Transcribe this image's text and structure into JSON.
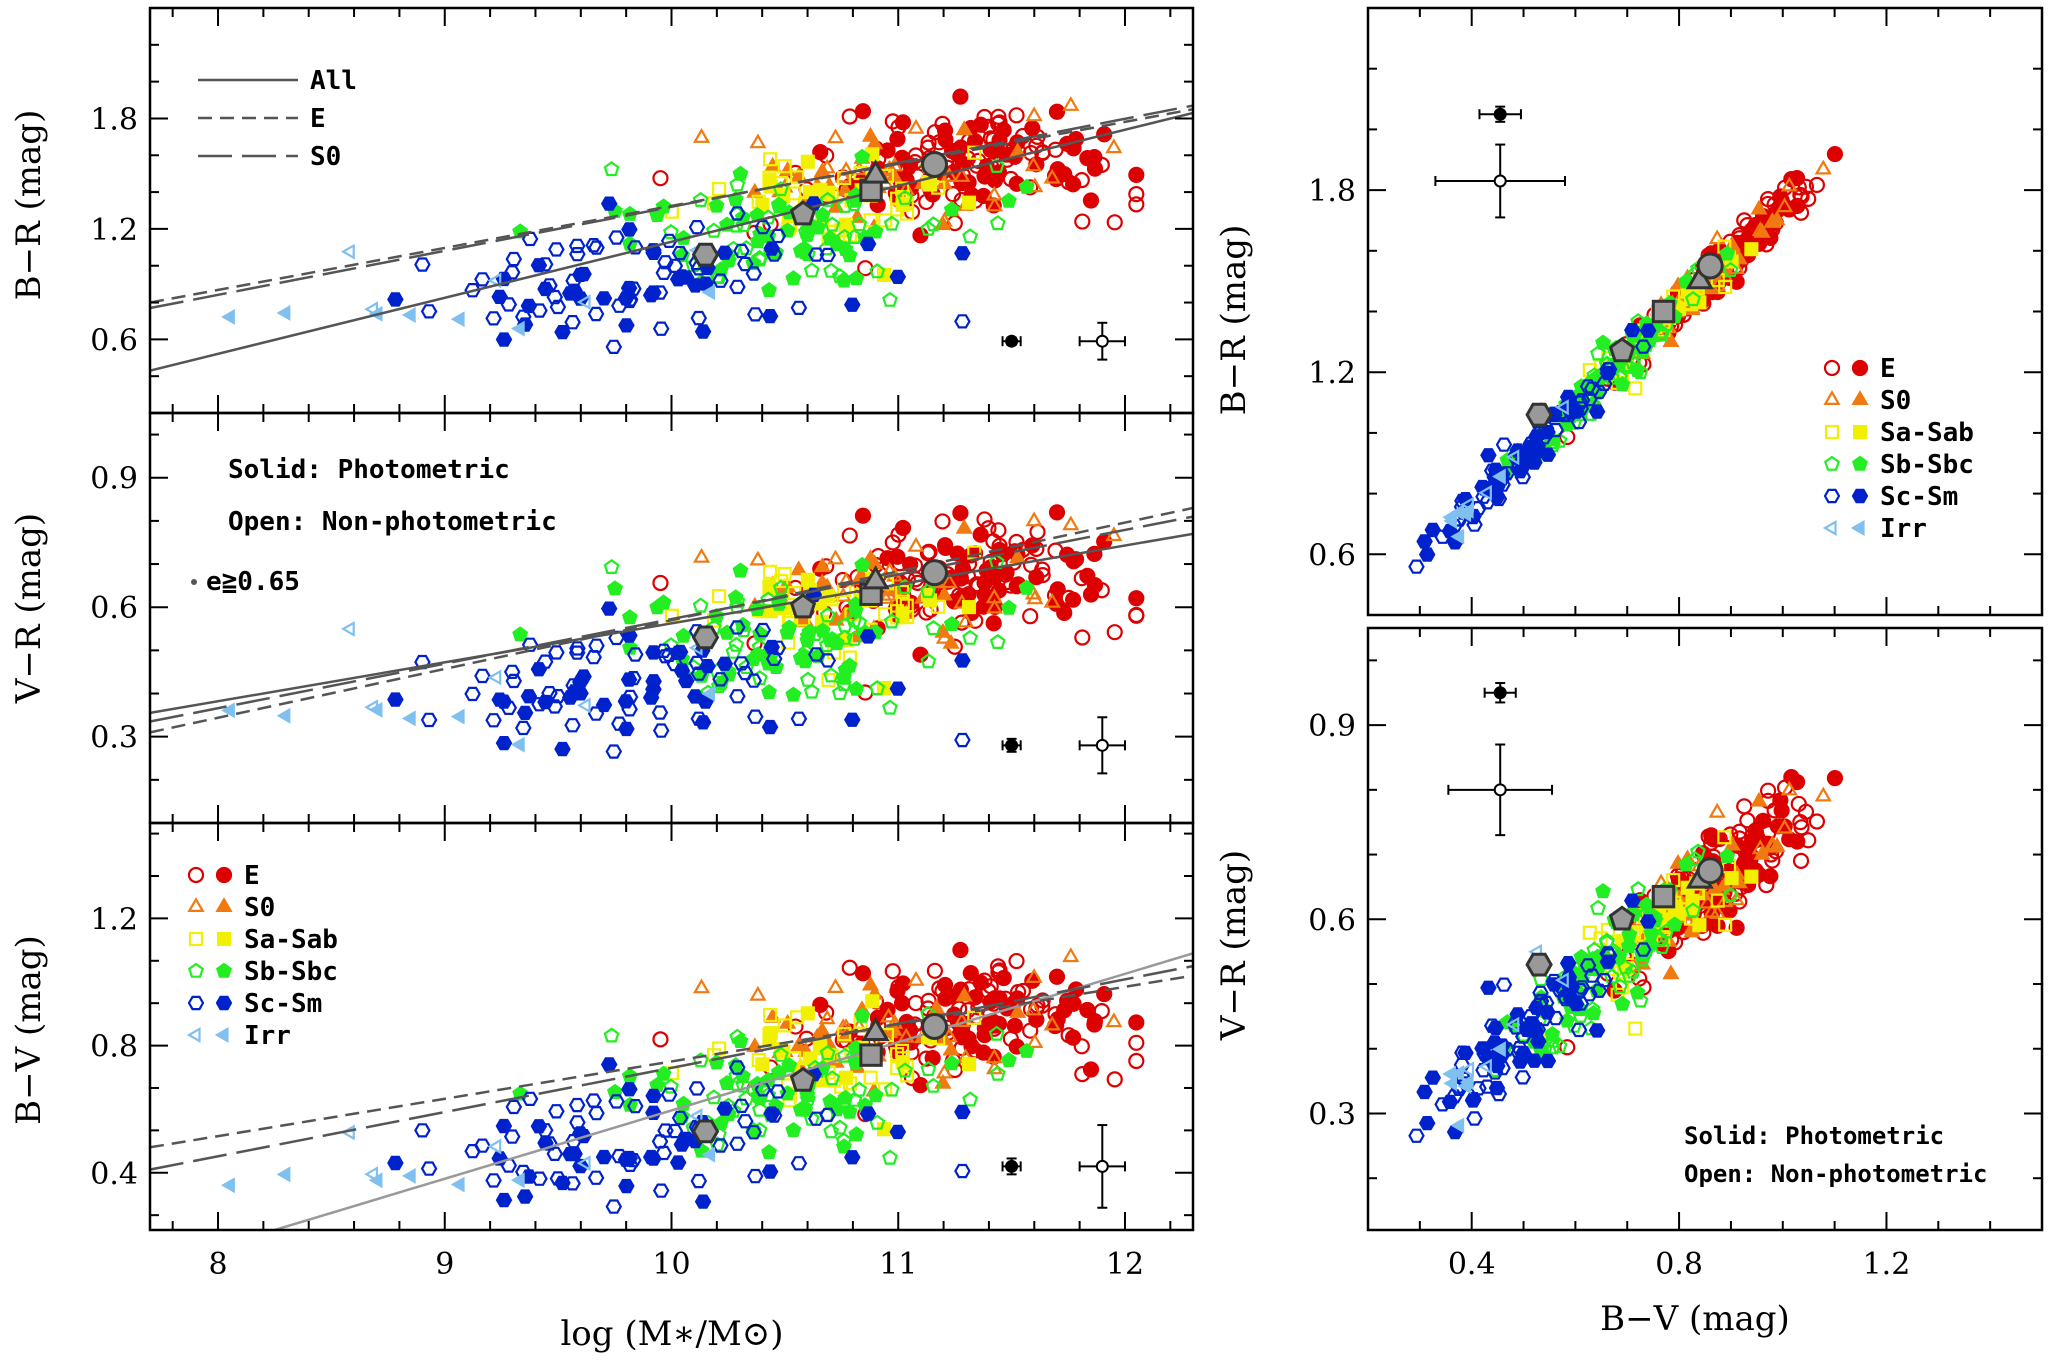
{
  "figure": {
    "colors": {
      "E": "#dd0000",
      "S0": "#f07a10",
      "Sa-Sab": "#f0f000",
      "Sb-Sbc": "#22ee22",
      "Sc-Sm": "#0022cc",
      "Irr": "#80c0f0",
      "mean": "#999999",
      "fit": "#555555",
      "fit_light": "#999999"
    },
    "fits_legend": [
      {
        "label": "All",
        "style": "solid"
      },
      {
        "label": "E",
        "style": "short-dash"
      },
      {
        "label": "S0",
        "style": "long-dash"
      }
    ],
    "type_legend": [
      {
        "label": "E",
        "key": "E",
        "marker": "circle"
      },
      {
        "label": "S0",
        "key": "S0",
        "marker": "triangle"
      },
      {
        "label": "Sa-Sab",
        "key": "Sa-Sab",
        "marker": "square"
      },
      {
        "label": "Sb-Sbc",
        "key": "Sb-Sbc",
        "marker": "pentagon"
      },
      {
        "label": "Sc-Sm",
        "key": "Sc-Sm",
        "marker": "hexagon"
      },
      {
        "label": "Irr",
        "key": "Irr",
        "marker": "left-triangle"
      }
    ],
    "notes": {
      "solid": "Solid: Photometric",
      "open": "Open: Non-photometric",
      "ecc": "e≧0.65"
    }
  },
  "chart_data": [
    {
      "id": "p1",
      "type": "scatter",
      "xlabel": "",
      "ylabel": "B−R (mag)",
      "xlim": [
        7.7,
        12.3
      ],
      "ylim": [
        0.2,
        2.4
      ],
      "xticks": [
        8,
        9,
        10,
        11,
        12
      ],
      "yticks": [
        0.6,
        1.2,
        1.8
      ],
      "means": [
        {
          "x": 10.15,
          "y": 1.06,
          "marker": "hexagon"
        },
        {
          "x": 10.58,
          "y": 1.28,
          "marker": "pentagon"
        },
        {
          "x": 10.88,
          "y": 1.41,
          "marker": "square"
        },
        {
          "x": 10.9,
          "y": 1.49,
          "marker": "triangle"
        },
        {
          "x": 11.16,
          "y": 1.55,
          "marker": "circle"
        }
      ],
      "fits": [
        {
          "style": "solid",
          "x": [
            7.7,
            12.3
          ],
          "y": [
            0.43,
            1.83
          ]
        },
        {
          "style": "short-dash",
          "x": [
            7.7,
            12.3
          ],
          "y": [
            0.8,
            1.85
          ]
        },
        {
          "style": "long-dash",
          "x": [
            7.7,
            12.3
          ],
          "y": [
            0.77,
            1.87
          ]
        }
      ],
      "errorbars": [
        {
          "x": 11.5,
          "y": 0.59,
          "xerr": 0.04,
          "yerr": 0.02,
          "filled": true
        },
        {
          "x": 11.9,
          "y": 0.59,
          "xerr": 0.1,
          "yerr": 0.1,
          "filled": false
        }
      ],
      "scatter": {
        "seed": 11,
        "xfield": "m",
        "yfield": "br"
      }
    },
    {
      "id": "p2",
      "type": "scatter",
      "xlabel": "",
      "ylabel": "V−R (mag)",
      "xlim": [
        7.7,
        12.3
      ],
      "ylim": [
        0.1,
        1.05
      ],
      "xticks": [
        8,
        9,
        10,
        11,
        12
      ],
      "yticks": [
        0.3,
        0.6,
        0.9
      ],
      "means": [
        {
          "x": 10.15,
          "y": 0.53,
          "marker": "hexagon"
        },
        {
          "x": 10.58,
          "y": 0.6,
          "marker": "pentagon"
        },
        {
          "x": 10.88,
          "y": 0.63,
          "marker": "square"
        },
        {
          "x": 10.9,
          "y": 0.66,
          "marker": "triangle"
        },
        {
          "x": 11.16,
          "y": 0.68,
          "marker": "circle"
        }
      ],
      "fits": [
        {
          "style": "solid",
          "x": [
            7.7,
            12.3
          ],
          "y": [
            0.355,
            0.77
          ]
        },
        {
          "style": "short-dash",
          "x": [
            7.7,
            12.3
          ],
          "y": [
            0.31,
            0.83
          ]
        },
        {
          "style": "long-dash",
          "x": [
            7.7,
            12.3
          ],
          "y": [
            0.335,
            0.81
          ]
        }
      ],
      "errorbars": [
        {
          "x": 11.5,
          "y": 0.28,
          "xerr": 0.04,
          "yerr": 0.015,
          "filled": true
        },
        {
          "x": 11.9,
          "y": 0.28,
          "xerr": 0.1,
          "yerr": 0.065,
          "filled": false
        }
      ],
      "scatter": {
        "seed": 23,
        "xfield": "m",
        "yfield": "vr"
      }
    },
    {
      "id": "p3",
      "type": "scatter",
      "xlabel": "log (M∗/M⊙)",
      "ylabel": "B−V (mag)",
      "xlim": [
        7.7,
        12.3
      ],
      "ylim": [
        0.22,
        1.5
      ],
      "xticks": [
        8,
        9,
        10,
        11,
        12
      ],
      "yticks": [
        0.4,
        0.8,
        1.2
      ],
      "means": [
        {
          "x": 10.15,
          "y": 0.53,
          "marker": "hexagon"
        },
        {
          "x": 10.58,
          "y": 0.69,
          "marker": "pentagon"
        },
        {
          "x": 10.88,
          "y": 0.77,
          "marker": "square"
        },
        {
          "x": 10.9,
          "y": 0.84,
          "marker": "triangle"
        },
        {
          "x": 11.16,
          "y": 0.86,
          "marker": "circle"
        }
      ],
      "fits": [
        {
          "style": "solid-light",
          "x": [
            8.25,
            12.3
          ],
          "y": [
            0.22,
            1.09
          ]
        },
        {
          "style": "short-dash",
          "x": [
            7.7,
            12.3
          ],
          "y": [
            0.48,
            1.02
          ]
        },
        {
          "style": "long-dash",
          "x": [
            7.7,
            12.3
          ],
          "y": [
            0.41,
            1.05
          ]
        }
      ],
      "errorbars": [
        {
          "x": 11.5,
          "y": 0.42,
          "xerr": 0.04,
          "yerr": 0.025,
          "filled": true
        },
        {
          "x": 11.9,
          "y": 0.42,
          "xerr": 0.1,
          "yerr": 0.13,
          "filled": false
        }
      ],
      "scatter": {
        "seed": 37,
        "xfield": "m",
        "yfield": "bv"
      }
    },
    {
      "id": "p4",
      "type": "scatter",
      "xlabel": "",
      "ylabel": "B−R (mag)",
      "xlim": [
        0.2,
        1.5
      ],
      "ylim": [
        0.4,
        2.4
      ],
      "xticks": [
        0.4,
        0.8,
        1.2
      ],
      "yticks": [
        0.6,
        1.2,
        1.8
      ],
      "means": [
        {
          "x": 0.53,
          "y": 1.06,
          "marker": "hexagon"
        },
        {
          "x": 0.69,
          "y": 1.27,
          "marker": "pentagon"
        },
        {
          "x": 0.77,
          "y": 1.4,
          "marker": "square"
        },
        {
          "x": 0.84,
          "y": 1.5,
          "marker": "triangle"
        },
        {
          "x": 0.86,
          "y": 1.55,
          "marker": "circle"
        }
      ],
      "fits": [],
      "errorbars": [
        {
          "x": 0.455,
          "y": 2.05,
          "xerr": 0.04,
          "yerr": 0.025,
          "filled": true
        },
        {
          "x": 0.455,
          "y": 1.83,
          "xerr": 0.125,
          "yerr": 0.12,
          "filled": false
        }
      ],
      "scatter": {
        "seed": 53,
        "xfield": "bv",
        "yfield": "br"
      }
    },
    {
      "id": "p5",
      "type": "scatter",
      "xlabel": "B−V (mag)",
      "ylabel": "V−R (mag)",
      "xlim": [
        0.2,
        1.5
      ],
      "ylim": [
        0.12,
        1.05
      ],
      "xticks": [
        0.4,
        0.8,
        1.2
      ],
      "yticks": [
        0.3,
        0.6,
        0.9
      ],
      "means": [
        {
          "x": 0.53,
          "y": 0.53,
          "marker": "hexagon"
        },
        {
          "x": 0.69,
          "y": 0.6,
          "marker": "pentagon"
        },
        {
          "x": 0.77,
          "y": 0.635,
          "marker": "square"
        },
        {
          "x": 0.84,
          "y": 0.66,
          "marker": "triangle"
        },
        {
          "x": 0.86,
          "y": 0.675,
          "marker": "circle"
        }
      ],
      "fits": [],
      "errorbars": [
        {
          "x": 0.455,
          "y": 0.95,
          "xerr": 0.03,
          "yerr": 0.015,
          "filled": true
        },
        {
          "x": 0.455,
          "y": 0.8,
          "xerr": 0.1,
          "yerr": 0.07,
          "filled": false
        }
      ],
      "scatter": {
        "seed": 71,
        "xfield": "bv",
        "yfield": "vr"
      }
    }
  ]
}
